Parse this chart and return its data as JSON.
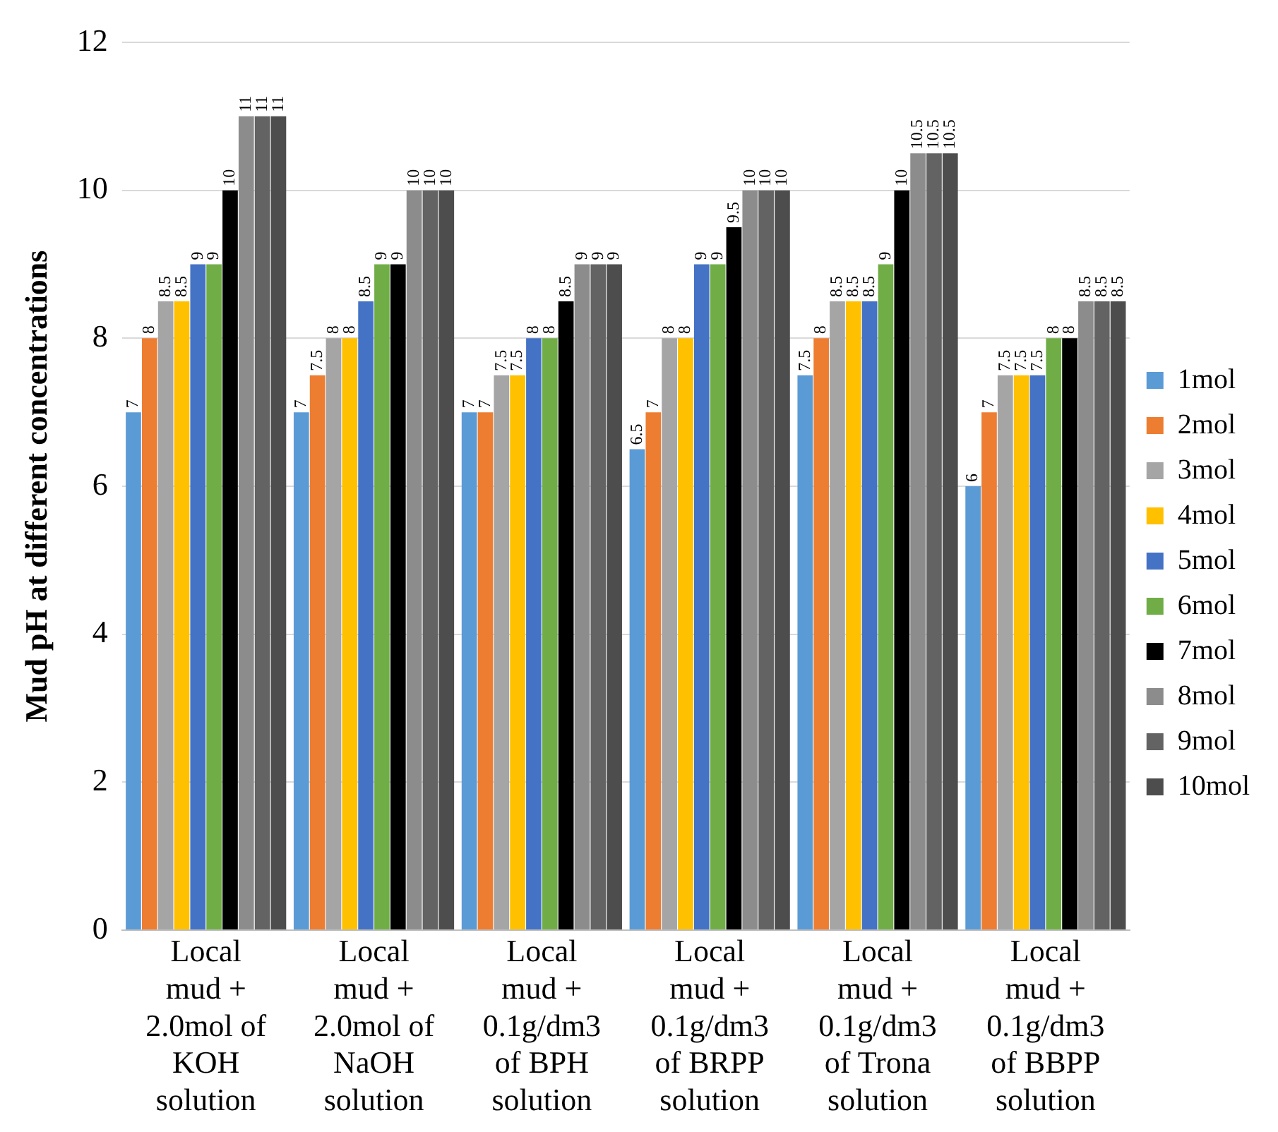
{
  "chart_data": {
    "type": "bar",
    "ylabel": "Mud pH at different concentrations",
    "categories": [
      "Local\nmud +\n2.0mol of\nKOH\nsolution",
      "Local\nmud +\n2.0mol of\nNaOH\nsolution",
      "Local\nmud +\n0.1g/dm3\nof BPH\nsolution",
      "Local\nmud +\n0.1g/dm3\nof BRPP\nsolution",
      "Local\nmud +\n0.1g/dm3\nof Trona\nsolution",
      "Local\nmud +\n0.1g/dm3\nof BBPP\nsolution"
    ],
    "series": [
      {
        "name": "1mol",
        "color": "#5b9bd5",
        "values": [
          7,
          7,
          7,
          6.5,
          7.5,
          6
        ]
      },
      {
        "name": "2mol",
        "color": "#ed7d31",
        "values": [
          8,
          7.5,
          7,
          7,
          8,
          7
        ]
      },
      {
        "name": "3mol",
        "color": "#a5a5a5",
        "values": [
          8.5,
          8,
          7.5,
          8,
          8.5,
          7.5
        ]
      },
      {
        "name": "4mol",
        "color": "#ffc000",
        "values": [
          8.5,
          8,
          7.5,
          8,
          8.5,
          7.5
        ]
      },
      {
        "name": "5mol",
        "color": "#4472c4",
        "values": [
          9,
          8.5,
          8,
          9,
          8.5,
          7.5
        ]
      },
      {
        "name": "6mol",
        "color": "#70ad47",
        "values": [
          9,
          9,
          8,
          9,
          9,
          8
        ]
      },
      {
        "name": "7mol",
        "color": "#000000",
        "values": [
          10,
          9,
          8.5,
          9.5,
          10,
          8
        ]
      },
      {
        "name": "8mol",
        "color": "#8c8c8c",
        "values": [
          11,
          10,
          9,
          10,
          10.5,
          8.5
        ]
      },
      {
        "name": "9mol",
        "color": "#636363",
        "values": [
          11,
          10,
          9,
          10,
          10.5,
          8.5
        ]
      },
      {
        "name": "10mol",
        "color": "#4d4d4d",
        "values": [
          11,
          10,
          9,
          10,
          10.5,
          8.5
        ]
      }
    ],
    "ylim": [
      0,
      12
    ],
    "yticks": [
      0,
      2,
      4,
      6,
      8,
      10,
      12
    ],
    "grid": "y",
    "legend": "right",
    "data_labels": true
  }
}
